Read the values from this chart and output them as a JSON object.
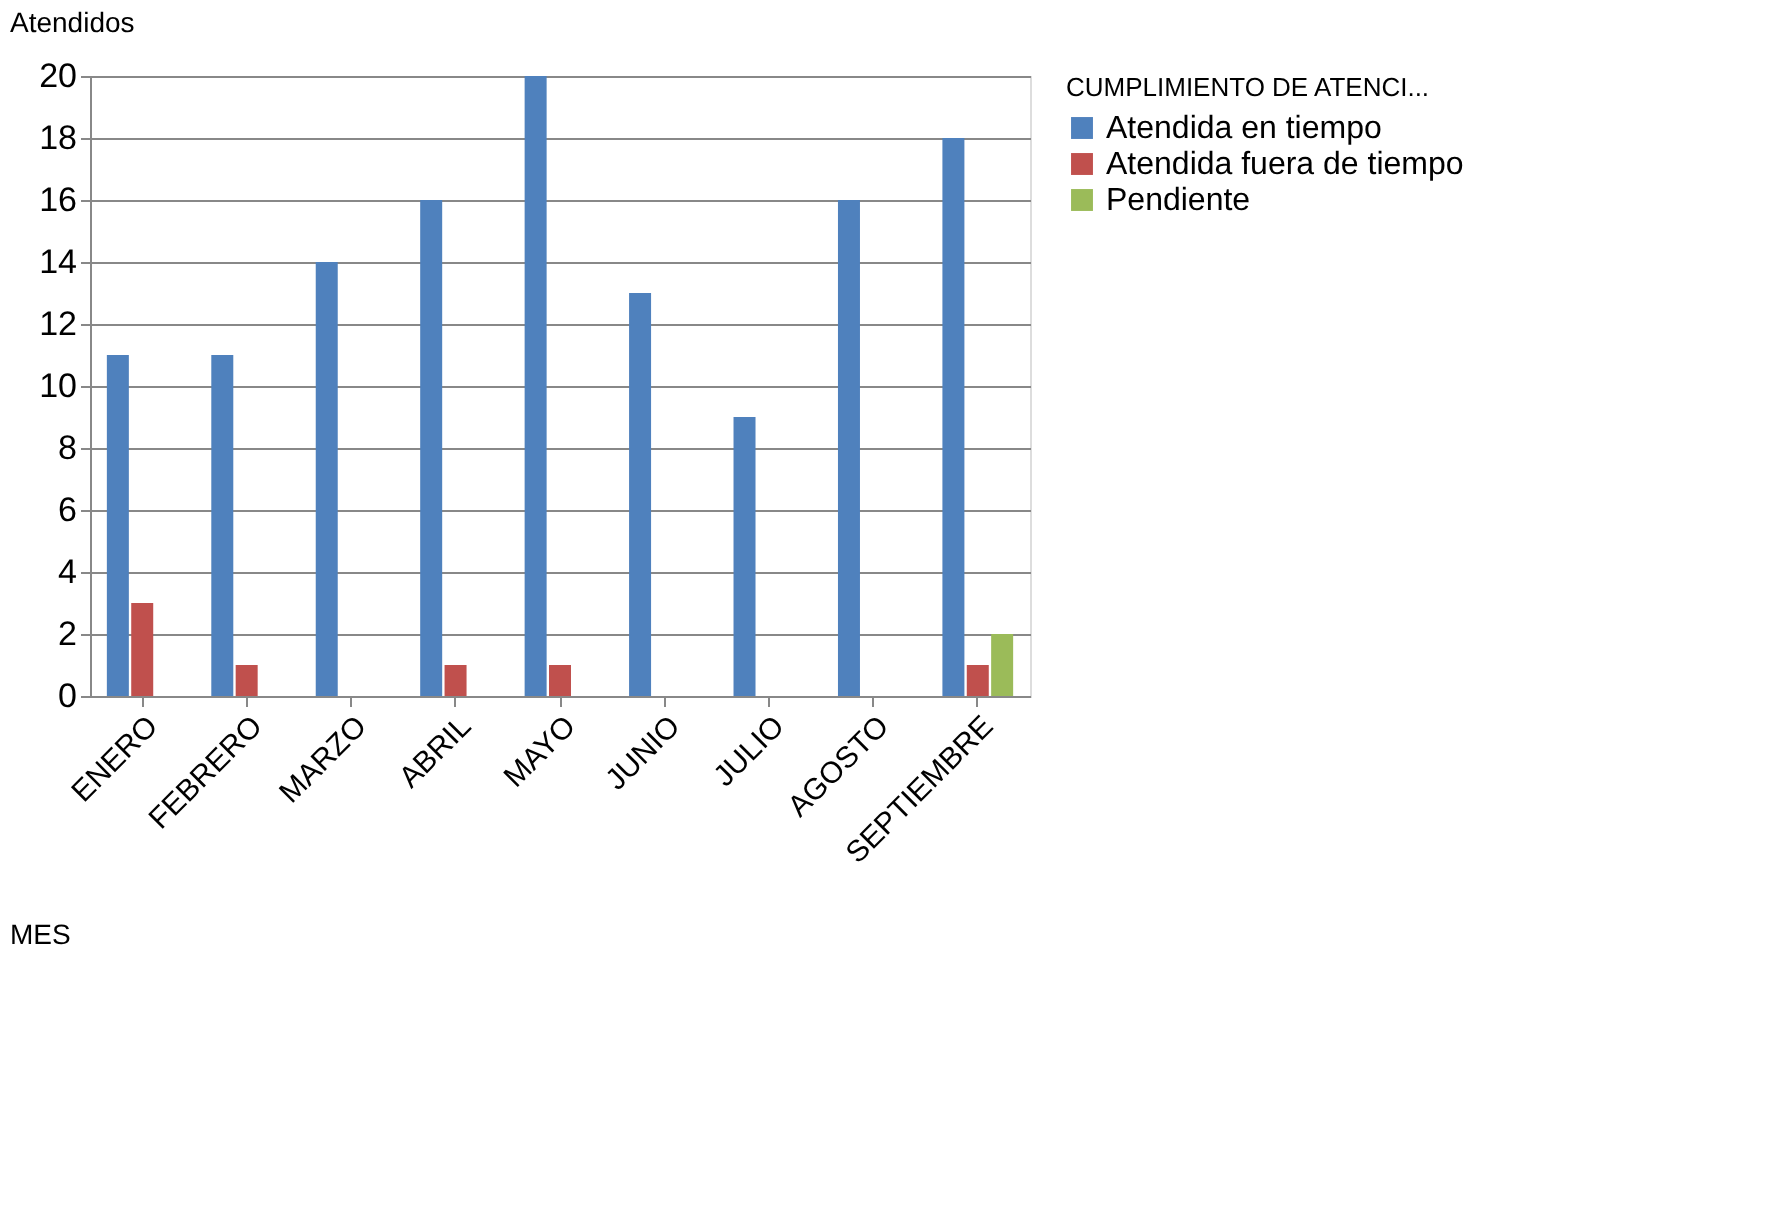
{
  "chart_data": {
    "type": "bar",
    "title": "Atendidos",
    "legend_title": "CUMPLIMIENTO DE ATENCI...",
    "annotations": [
      "MES"
    ],
    "categories": [
      "ENERO",
      "FEBRERO",
      "MARZO",
      "ABRIL",
      "MAYO",
      "JUNIO",
      "JULIO",
      "AGOSTO",
      "SEPTIEMBRE"
    ],
    "series": [
      {
        "name": "Atendida en tiempo",
        "color": "#4f81bd",
        "values": [
          11,
          11,
          14,
          16,
          20,
          13,
          9,
          16,
          18
        ]
      },
      {
        "name": "Atendida fuera de tiempo",
        "color": "#c0504d",
        "values": [
          3,
          1,
          null,
          1,
          1,
          null,
          null,
          null,
          1
        ]
      },
      {
        "name": "Pendiente",
        "color": "#9bbb59",
        "values": [
          null,
          null,
          null,
          null,
          null,
          null,
          null,
          null,
          2
        ]
      }
    ],
    "ylim": [
      0,
      20
    ],
    "yticks": [
      0,
      2,
      4,
      6,
      8,
      10,
      12,
      14,
      16,
      18,
      20
    ],
    "grid": "y",
    "legend": "right"
  }
}
